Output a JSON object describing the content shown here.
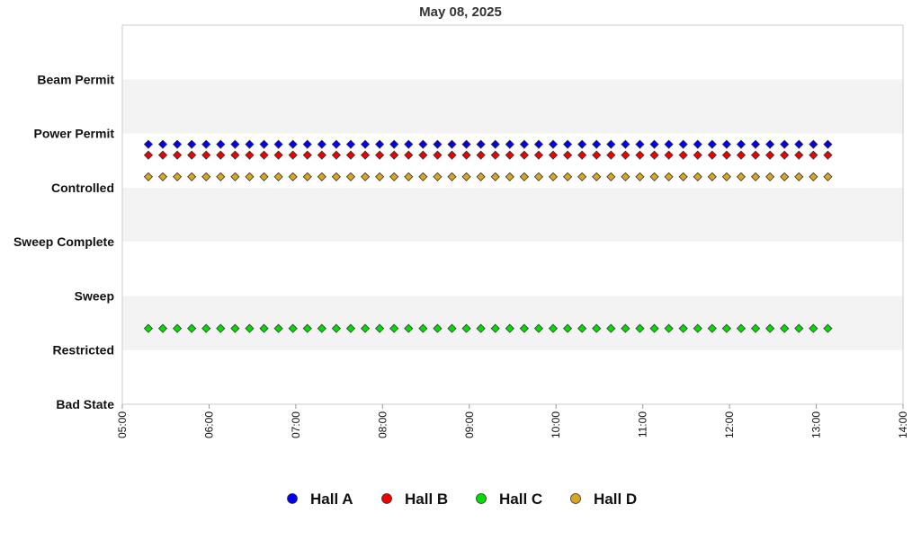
{
  "chart_data": {
    "type": "scatter",
    "title": "May 08, 2025",
    "xlabel": "",
    "ylabel": "",
    "x_tick_labels": [
      "05:00",
      "06:00",
      "07:00",
      "08:00",
      "09:00",
      "10:00",
      "11:00",
      "12:00",
      "13:00",
      "14:00"
    ],
    "x_range_hours": [
      5,
      14
    ],
    "y_categories": [
      "Bad State",
      "Restricted",
      "Sweep",
      "Sweep Complete",
      "Controlled",
      "Power Permit",
      "Beam Permit"
    ],
    "y_range": [
      0,
      7
    ],
    "bands": "alternating white / light gray",
    "x_start_hour": 5.3,
    "x_step_minutes": 10,
    "x_count": 48,
    "series": [
      {
        "name": "Hall A",
        "color": "#0000ee",
        "value": 4.8
      },
      {
        "name": "Hall B",
        "color": "#ee0000",
        "value": 4.6
      },
      {
        "name": "Hall C",
        "color": "#00dd00",
        "value": 1.4
      },
      {
        "name": "Hall D",
        "color": "#daa520",
        "value": 4.2
      }
    ],
    "legend_position": "bottom-center"
  }
}
